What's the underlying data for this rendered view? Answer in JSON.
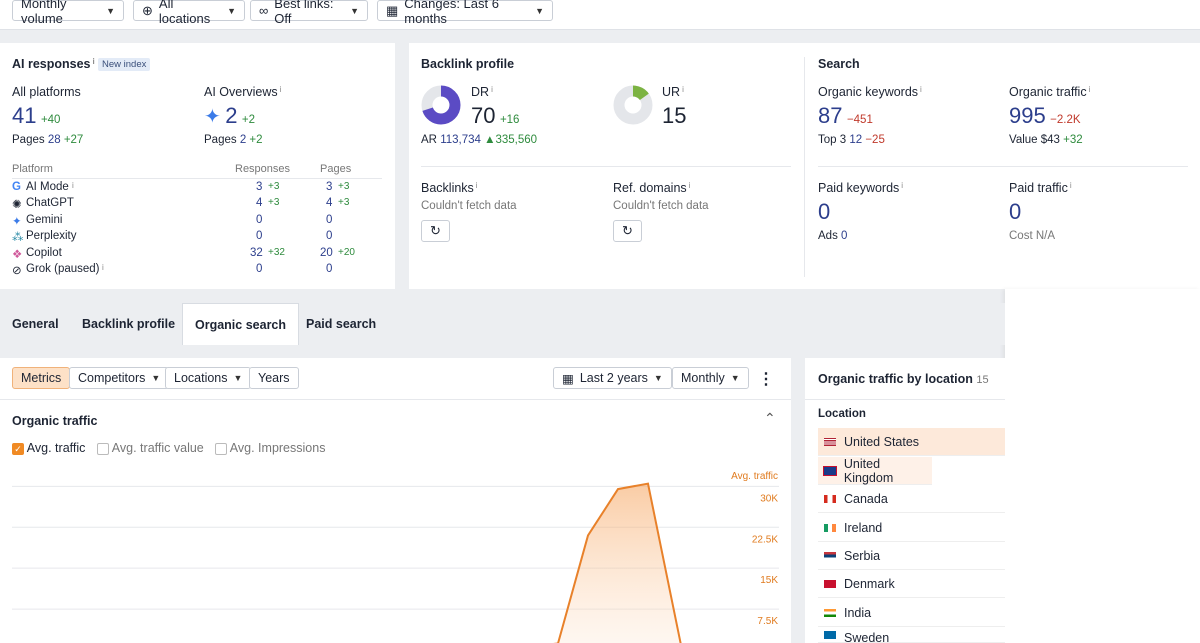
{
  "toolbar": {
    "volume": "Monthly volume",
    "locations": "All locations",
    "best_links": "Best links: Off",
    "changes": "Changes: Last 6 months"
  },
  "ai": {
    "title": "AI responses",
    "badge": "New index",
    "all_label": "All platforms",
    "all_value": "41",
    "all_delta": "+40",
    "pages_label": "Pages",
    "all_pages": "28",
    "all_pages_delta": "+27",
    "overviews_label": "AI Overviews",
    "overviews_value": "2",
    "overviews_delta": "+2",
    "overviews_pages": "2",
    "overviews_pages_delta": "+2",
    "col_platform": "Platform",
    "col_responses": "Responses",
    "col_pages": "Pages",
    "platforms": [
      {
        "name": "AI Mode",
        "resp": "3",
        "resp_d": "+3",
        "pages": "3",
        "pages_d": "+3"
      },
      {
        "name": "ChatGPT",
        "resp": "4",
        "resp_d": "+3",
        "pages": "4",
        "pages_d": "+3"
      },
      {
        "name": "Gemini",
        "resp": "0",
        "resp_d": "",
        "pages": "0",
        "pages_d": ""
      },
      {
        "name": "Perplexity",
        "resp": "0",
        "resp_d": "",
        "pages": "0",
        "pages_d": ""
      },
      {
        "name": "Copilot",
        "resp": "32",
        "resp_d": "+32",
        "pages": "20",
        "pages_d": "+20"
      },
      {
        "name": "Grok (paused)",
        "resp": "0",
        "resp_d": "",
        "pages": "0",
        "pages_d": ""
      }
    ]
  },
  "backlink": {
    "title": "Backlink profile",
    "dr_label": "DR",
    "dr_value": "70",
    "dr_delta": "+16",
    "dr_fraction": 0.7,
    "ur_label": "UR",
    "ur_value": "15",
    "ur_fraction": 0.15,
    "ar_label": "AR",
    "ar_value": "113,734",
    "ar_delta": "335,560",
    "backlinks_label": "Backlinks",
    "backlinks_msg": "Couldn't fetch data",
    "refdomains_label": "Ref. domains",
    "refdomains_msg": "Couldn't fetch data"
  },
  "search": {
    "title": "Search",
    "ok_label": "Organic keywords",
    "ok_value": "87",
    "ok_delta": "−451",
    "top3_label": "Top 3",
    "top3_value": "12",
    "top3_delta": "−25",
    "ot_label": "Organic traffic",
    "ot_value": "995",
    "ot_delta": "−2.2K",
    "value_label": "Value",
    "value_value": "$43",
    "value_delta": "+32",
    "pk_label": "Paid keywords",
    "pk_value": "0",
    "ads_label": "Ads",
    "ads_value": "0",
    "pt_label": "Paid traffic",
    "pt_value": "0",
    "cost_label": "Cost",
    "cost_value": "N/A"
  },
  "tabs": [
    "General",
    "Backlink profile",
    "Organic search",
    "Paid search"
  ],
  "subtoolbar": {
    "metrics": "Metrics",
    "competitors": "Competitors",
    "locations": "Locations",
    "years": "Years",
    "range": "Last 2 years",
    "interval": "Monthly"
  },
  "traffic": {
    "title": "Organic traffic",
    "cb1": "Avg. traffic",
    "cb2": "Avg. traffic value",
    "cb3": "Avg. Impressions"
  },
  "chart_data": {
    "type": "area",
    "series": [
      {
        "name": "Avg. traffic",
        "values": [
          0,
          1200,
          21000,
          29500,
          30500,
          0
        ]
      }
    ],
    "x": [
      1,
      2,
      3,
      4,
      5,
      6
    ],
    "yticks": [
      "30K",
      "22.5K",
      "15K",
      "7.5K"
    ],
    "ylim": [
      0,
      33000
    ]
  },
  "locations": {
    "title": "Organic traffic by location",
    "count": "15",
    "col": "Location",
    "items": [
      "United States",
      "United Kingdom",
      "Canada",
      "Ireland",
      "Serbia",
      "Denmark",
      "India",
      "Sweden"
    ]
  }
}
